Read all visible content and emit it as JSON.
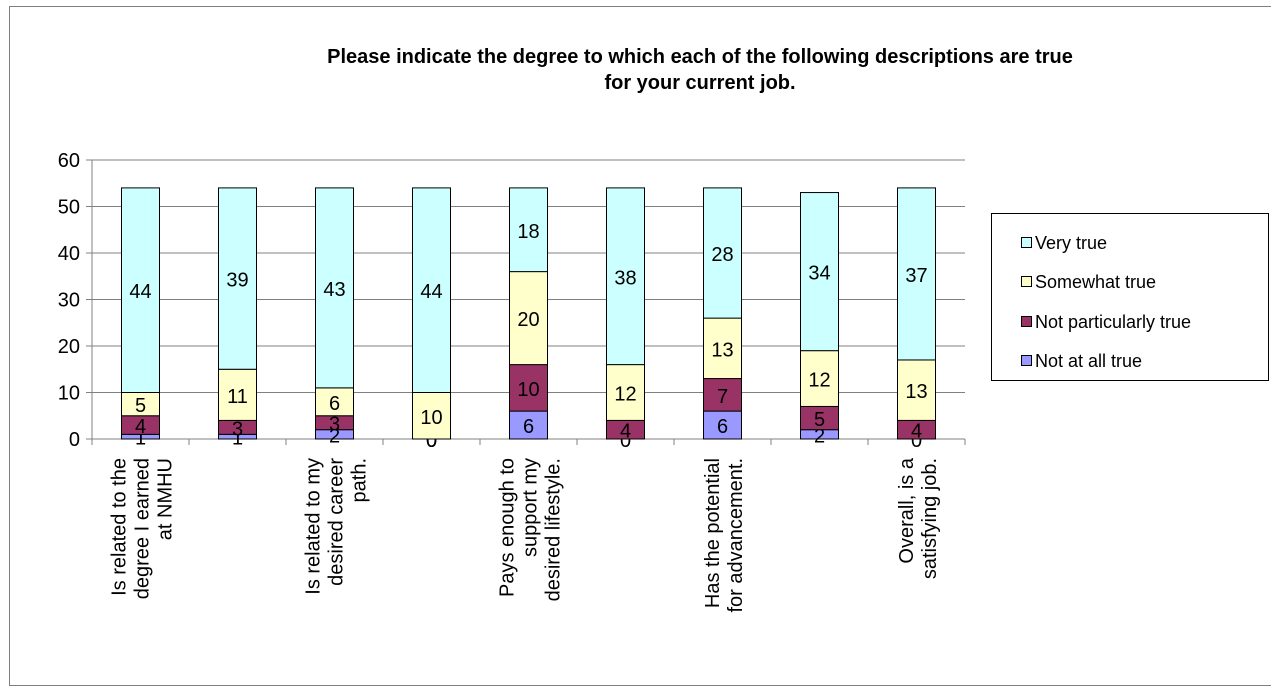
{
  "colors": {
    "not_at_all": "#9999ff",
    "not_particularly": "#993366",
    "somewhat": "#ffffcc",
    "very": "#ccffff"
  },
  "chart_data": {
    "type": "bar",
    "stacked": true,
    "title": "Please indicate the degree to which each of the following descriptions are true for your current job.",
    "title_lines": [
      "Please indicate the degree to which each of the following descriptions are true",
      "for your current job."
    ],
    "ylim": [
      0,
      60
    ],
    "yticks": [
      0,
      10,
      20,
      30,
      40,
      50,
      60
    ],
    "grid": true,
    "legend_position": "right",
    "categories": [
      "Is related to the degree I earned at NMHU",
      "",
      "Is related to my desired career path.",
      "",
      "Pays enough to support my desired lifestyle.",
      "",
      "Has the potential for advancement.",
      "",
      "Overall, is a satisfying job."
    ],
    "category_lines": [
      [
        "Is related to the",
        "degree I earned",
        "at NMHU"
      ],
      [],
      [
        "Is related to my",
        "desired career",
        "path."
      ],
      [],
      [
        "Pays enough to",
        "support my",
        "desired lifestyle."
      ],
      [],
      [
        "Has the potential",
        "for advancement."
      ],
      [],
      [
        "Overall, is a",
        "satisfying job."
      ]
    ],
    "series": [
      {
        "name": "Not at all true",
        "color_key": "not_at_all",
        "values": [
          1,
          1,
          2,
          0,
          6,
          0,
          6,
          2,
          0
        ]
      },
      {
        "name": "Not particularly true",
        "color_key": "not_particularly",
        "values": [
          4,
          3,
          3,
          0,
          10,
          4,
          7,
          5,
          4
        ]
      },
      {
        "name": "Somewhat true",
        "color_key": "somewhat",
        "values": [
          5,
          11,
          6,
          10,
          20,
          12,
          13,
          12,
          13
        ]
      },
      {
        "name": "Very true",
        "color_key": "very",
        "values": [
          44,
          39,
          43,
          44,
          18,
          38,
          28,
          34,
          37
        ]
      }
    ],
    "legend_order": [
      "Very true",
      "Somewhat true",
      "Not particularly true",
      "Not at all true"
    ]
  }
}
